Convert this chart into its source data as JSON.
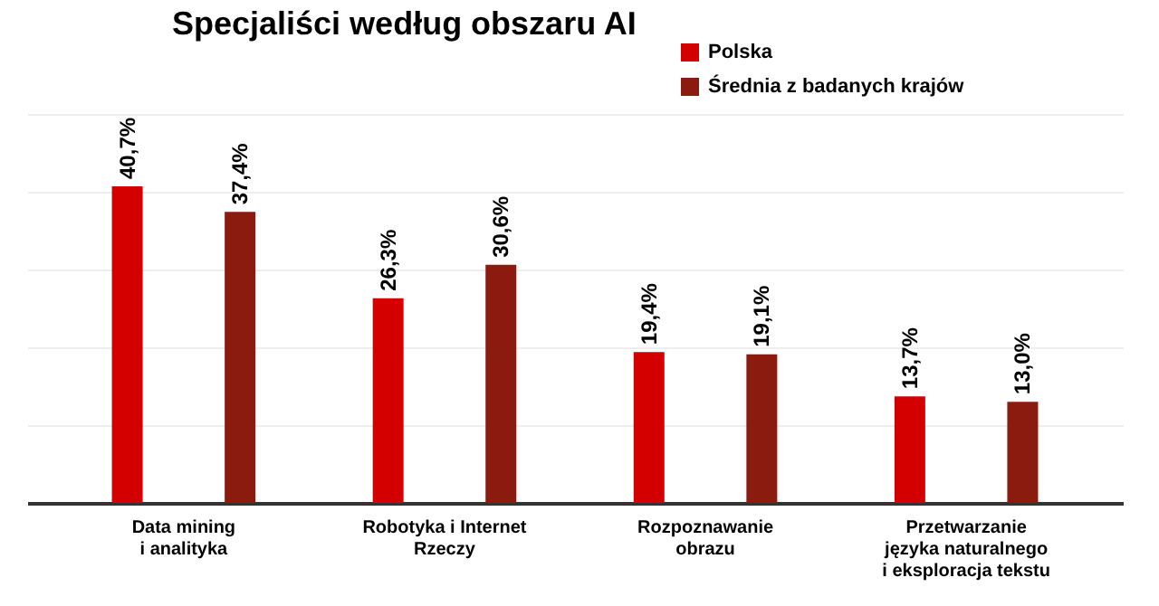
{
  "chart_data": {
    "type": "bar",
    "title": "Specjaliści według obszaru AI",
    "categories": [
      "Data mining\ni analityka",
      "Robotyka i Internet\nRzeczy",
      "Rozpoznawanie\nobrazu",
      "Przetwarzanie\njęzyka naturalnego\ni eksploracja tekstu"
    ],
    "series": [
      {
        "name": "Polska",
        "color": "#d40000",
        "values": [
          40.7,
          26.3,
          19.4,
          13.7
        ],
        "value_labels": [
          "40,7%",
          "26,3%",
          "19,4%",
          "13,7%"
        ]
      },
      {
        "name": "Średnia z badanych krajów",
        "color": "#8b1a0f",
        "values": [
          37.4,
          30.6,
          19.1,
          13.0
        ],
        "value_labels": [
          "37,4%",
          "30,6%",
          "19,1%",
          "13,0%"
        ]
      }
    ],
    "ylim": [
      0,
      50
    ],
    "grid": "y",
    "legend": "top right",
    "tick_labels": "x"
  }
}
